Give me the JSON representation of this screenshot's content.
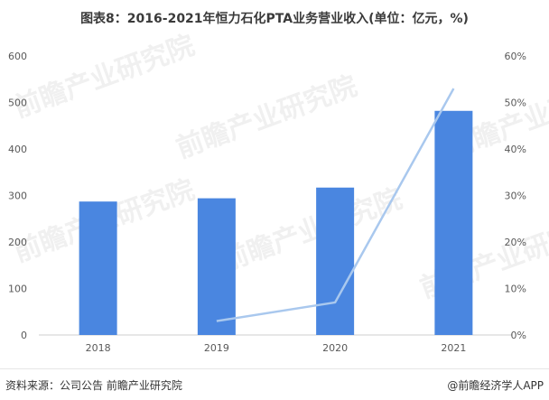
{
  "title": "图表8：2016-2021年恒力石化PTA业务营业收入(单位：亿元，%)",
  "source": "资料来源：公司公告 前瞻产业研究院",
  "brand": "@前瞻经济学人APP",
  "watermark": "前瞻产业研究院",
  "colors": {
    "bar": "#4a86e0",
    "line": "#a9c8ee",
    "axis": "#cfcfcf",
    "tick": "#595959"
  },
  "chart_data": {
    "type": "bar",
    "categories": [
      "2018",
      "2019",
      "2020",
      "2021"
    ],
    "series": [
      {
        "type": "bar",
        "axis": "left",
        "values": [
          287,
          294,
          317,
          482
        ]
      },
      {
        "type": "line",
        "axis": "right",
        "values": [
          null,
          3,
          7,
          53
        ]
      }
    ],
    "y_left": {
      "ticks": [
        "0",
        "100",
        "200",
        "300",
        "400",
        "500",
        "600"
      ],
      "range": [
        0,
        600
      ]
    },
    "y_right": {
      "ticks": [
        "0%",
        "10%",
        "20%",
        "30%",
        "40%",
        "50%",
        "60%"
      ],
      "range": [
        0,
        60
      ]
    },
    "grid": false
  }
}
